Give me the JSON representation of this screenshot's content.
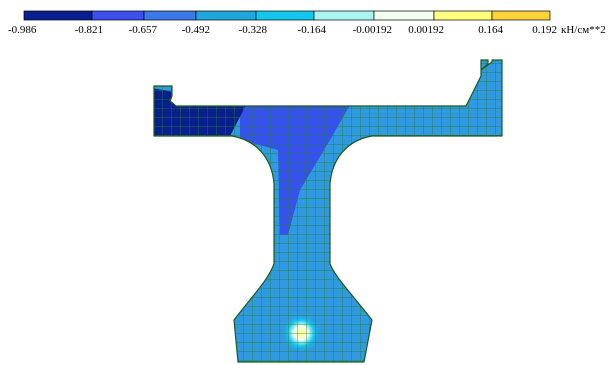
{
  "legend": {
    "ticks": [
      "-0.986",
      "-0.821",
      "-0.657",
      "-0.492",
      "-0.328",
      "-0.164",
      "-0.00192",
      "0.00192",
      "0.164",
      "0.192"
    ],
    "unit": "кН/см**2",
    "colors": [
      "#0a1f8f",
      "#3b4ef0",
      "#3b78e8",
      "#1fa6de",
      "#12c8ef",
      "#a8f4f0",
      "#f0fff0",
      "#ffff80",
      "#ffd23a"
    ]
  },
  "field": {
    "base_color": "#2f9ae0",
    "low_color": "#0a1f8f",
    "mid_low_color": "#3553ec",
    "hot_spot_color": "#ffff80",
    "mesh_color": "#2a7a2a",
    "outline_color": "#1a5a1a"
  }
}
